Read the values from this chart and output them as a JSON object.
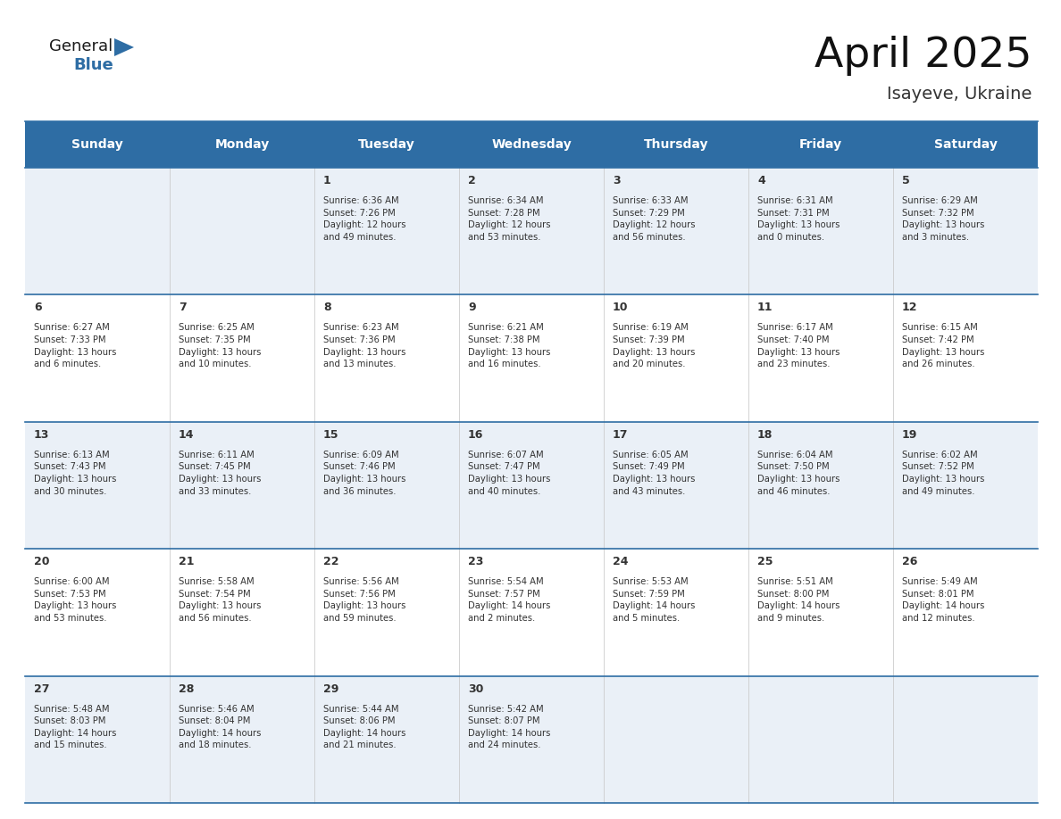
{
  "title": "April 2025",
  "subtitle": "Isayeve, Ukraine",
  "days_of_week": [
    "Sunday",
    "Monday",
    "Tuesday",
    "Wednesday",
    "Thursday",
    "Friday",
    "Saturday"
  ],
  "header_bg": "#2e6da4",
  "header_text": "#ffffff",
  "row_bg_odd": "#eaf0f7",
  "row_bg_even": "#ffffff",
  "text_color": "#333333",
  "day_num_color": "#333333",
  "grid_line_color": "#2e6da4",
  "calendar": [
    [
      {
        "day": null,
        "info": ""
      },
      {
        "day": null,
        "info": ""
      },
      {
        "day": 1,
        "info": "Sunrise: 6:36 AM\nSunset: 7:26 PM\nDaylight: 12 hours\nand 49 minutes."
      },
      {
        "day": 2,
        "info": "Sunrise: 6:34 AM\nSunset: 7:28 PM\nDaylight: 12 hours\nand 53 minutes."
      },
      {
        "day": 3,
        "info": "Sunrise: 6:33 AM\nSunset: 7:29 PM\nDaylight: 12 hours\nand 56 minutes."
      },
      {
        "day": 4,
        "info": "Sunrise: 6:31 AM\nSunset: 7:31 PM\nDaylight: 13 hours\nand 0 minutes."
      },
      {
        "day": 5,
        "info": "Sunrise: 6:29 AM\nSunset: 7:32 PM\nDaylight: 13 hours\nand 3 minutes."
      }
    ],
    [
      {
        "day": 6,
        "info": "Sunrise: 6:27 AM\nSunset: 7:33 PM\nDaylight: 13 hours\nand 6 minutes."
      },
      {
        "day": 7,
        "info": "Sunrise: 6:25 AM\nSunset: 7:35 PM\nDaylight: 13 hours\nand 10 minutes."
      },
      {
        "day": 8,
        "info": "Sunrise: 6:23 AM\nSunset: 7:36 PM\nDaylight: 13 hours\nand 13 minutes."
      },
      {
        "day": 9,
        "info": "Sunrise: 6:21 AM\nSunset: 7:38 PM\nDaylight: 13 hours\nand 16 minutes."
      },
      {
        "day": 10,
        "info": "Sunrise: 6:19 AM\nSunset: 7:39 PM\nDaylight: 13 hours\nand 20 minutes."
      },
      {
        "day": 11,
        "info": "Sunrise: 6:17 AM\nSunset: 7:40 PM\nDaylight: 13 hours\nand 23 minutes."
      },
      {
        "day": 12,
        "info": "Sunrise: 6:15 AM\nSunset: 7:42 PM\nDaylight: 13 hours\nand 26 minutes."
      }
    ],
    [
      {
        "day": 13,
        "info": "Sunrise: 6:13 AM\nSunset: 7:43 PM\nDaylight: 13 hours\nand 30 minutes."
      },
      {
        "day": 14,
        "info": "Sunrise: 6:11 AM\nSunset: 7:45 PM\nDaylight: 13 hours\nand 33 minutes."
      },
      {
        "day": 15,
        "info": "Sunrise: 6:09 AM\nSunset: 7:46 PM\nDaylight: 13 hours\nand 36 minutes."
      },
      {
        "day": 16,
        "info": "Sunrise: 6:07 AM\nSunset: 7:47 PM\nDaylight: 13 hours\nand 40 minutes."
      },
      {
        "day": 17,
        "info": "Sunrise: 6:05 AM\nSunset: 7:49 PM\nDaylight: 13 hours\nand 43 minutes."
      },
      {
        "day": 18,
        "info": "Sunrise: 6:04 AM\nSunset: 7:50 PM\nDaylight: 13 hours\nand 46 minutes."
      },
      {
        "day": 19,
        "info": "Sunrise: 6:02 AM\nSunset: 7:52 PM\nDaylight: 13 hours\nand 49 minutes."
      }
    ],
    [
      {
        "day": 20,
        "info": "Sunrise: 6:00 AM\nSunset: 7:53 PM\nDaylight: 13 hours\nand 53 minutes."
      },
      {
        "day": 21,
        "info": "Sunrise: 5:58 AM\nSunset: 7:54 PM\nDaylight: 13 hours\nand 56 minutes."
      },
      {
        "day": 22,
        "info": "Sunrise: 5:56 AM\nSunset: 7:56 PM\nDaylight: 13 hours\nand 59 minutes."
      },
      {
        "day": 23,
        "info": "Sunrise: 5:54 AM\nSunset: 7:57 PM\nDaylight: 14 hours\nand 2 minutes."
      },
      {
        "day": 24,
        "info": "Sunrise: 5:53 AM\nSunset: 7:59 PM\nDaylight: 14 hours\nand 5 minutes."
      },
      {
        "day": 25,
        "info": "Sunrise: 5:51 AM\nSunset: 8:00 PM\nDaylight: 14 hours\nand 9 minutes."
      },
      {
        "day": 26,
        "info": "Sunrise: 5:49 AM\nSunset: 8:01 PM\nDaylight: 14 hours\nand 12 minutes."
      }
    ],
    [
      {
        "day": 27,
        "info": "Sunrise: 5:48 AM\nSunset: 8:03 PM\nDaylight: 14 hours\nand 15 minutes."
      },
      {
        "day": 28,
        "info": "Sunrise: 5:46 AM\nSunset: 8:04 PM\nDaylight: 14 hours\nand 18 minutes."
      },
      {
        "day": 29,
        "info": "Sunrise: 5:44 AM\nSunset: 8:06 PM\nDaylight: 14 hours\nand 21 minutes."
      },
      {
        "day": 30,
        "info": "Sunrise: 5:42 AM\nSunset: 8:07 PM\nDaylight: 14 hours\nand 24 minutes."
      },
      {
        "day": null,
        "info": ""
      },
      {
        "day": null,
        "info": ""
      },
      {
        "day": null,
        "info": ""
      }
    ]
  ]
}
